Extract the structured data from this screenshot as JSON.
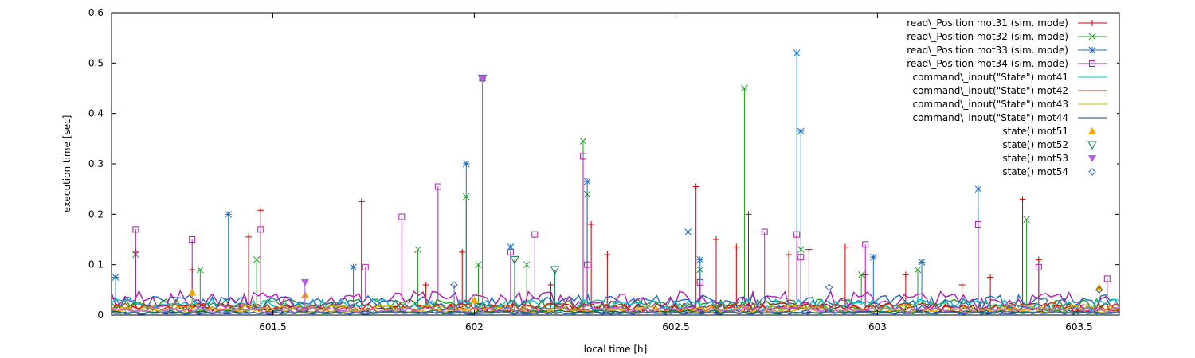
{
  "chart_data": {
    "type": "line",
    "title": "",
    "xlabel": "local time [h]",
    "ylabel": "execution time [sec]",
    "xlim": [
      601.1,
      603.6
    ],
    "ylim": [
      0,
      0.6
    ],
    "x_ticks": [
      601.5,
      602,
      602.5,
      603,
      603.5
    ],
    "x_tick_labels": [
      "601.5",
      "602",
      "602.5",
      "603",
      "603.5"
    ],
    "y_ticks": [
      0,
      0.1,
      0.2,
      0.3,
      0.4,
      0.5,
      0.6
    ],
    "y_tick_labels": [
      "0",
      "0.1",
      "0.2",
      "0.3",
      "0.4",
      "0.5",
      "0.6"
    ],
    "grid": false,
    "legend_position": "top-right",
    "series": [
      {
        "name": "read\\_Position mot31 (sim. mode)",
        "color": "#cc0000",
        "marker": "plus",
        "baseline": 0.015,
        "x": [
          601.16,
          601.3,
          601.44,
          601.47,
          601.72,
          601.88,
          601.97,
          602.19,
          602.29,
          602.33,
          602.55,
          602.6,
          602.65,
          602.68,
          602.78,
          602.83,
          602.92,
          602.97,
          603.07,
          603.21,
          603.28,
          603.36,
          603.4
        ],
        "y": [
          0.125,
          0.09,
          0.155,
          0.208,
          0.225,
          0.06,
          0.125,
          0.06,
          0.18,
          0.12,
          0.255,
          0.15,
          0.135,
          0.2,
          0.12,
          0.13,
          0.135,
          0.08,
          0.08,
          0.06,
          0.075,
          0.23,
          0.11
        ]
      },
      {
        "name": "read\\_Position mot32 (sim. mode)",
        "color": "#1e9e1e",
        "marker": "x",
        "baseline": 0.02,
        "x": [
          601.16,
          601.32,
          601.46,
          601.86,
          601.98,
          602.01,
          602.13,
          602.27,
          602.28,
          602.56,
          602.67,
          602.81,
          602.96,
          603.1,
          603.37
        ],
        "y": [
          0.12,
          0.09,
          0.11,
          0.13,
          0.235,
          0.1,
          0.1,
          0.345,
          0.24,
          0.09,
          0.45,
          0.13,
          0.08,
          0.09,
          0.19
        ]
      },
      {
        "name": "read\\_Position mot33 (sim. mode)",
        "color": "#1f6fbf",
        "marker": "star",
        "baseline": 0.025,
        "x": [
          601.11,
          601.39,
          601.7,
          601.98,
          602.02,
          602.09,
          602.28,
          602.53,
          602.56,
          602.8,
          602.81,
          602.99,
          603.11,
          603.25
        ],
        "y": [
          0.075,
          0.2,
          0.095,
          0.3,
          0.47,
          0.135,
          0.265,
          0.165,
          0.11,
          0.52,
          0.365,
          0.115,
          0.105,
          0.25
        ]
      },
      {
        "name": "read\\_Position mot34 (sim. mode)",
        "color": "#b01eb0",
        "marker": "square",
        "baseline": 0.03,
        "x": [
          601.16,
          601.3,
          601.47,
          601.73,
          601.82,
          601.91,
          602.02,
          602.09,
          602.15,
          602.27,
          602.28,
          602.56,
          602.72,
          602.8,
          602.81,
          602.97,
          603.25,
          603.4,
          603.57
        ],
        "y": [
          0.17,
          0.15,
          0.17,
          0.095,
          0.195,
          0.255,
          0.47,
          0.125,
          0.16,
          0.315,
          0.1,
          0.065,
          0.165,
          0.16,
          0.115,
          0.14,
          0.18,
          0.095,
          0.072
        ]
      },
      {
        "name": "command\\_inout(\"State\") mot41",
        "color": "#00c8c8",
        "marker": "none",
        "baseline": 0.02,
        "x": [],
        "y": []
      },
      {
        "name": "command\\_inout(\"State\") mot42",
        "color": "#cc3300",
        "marker": "none",
        "baseline": 0.015,
        "x": [],
        "y": []
      },
      {
        "name": "command\\_inout(\"State\") mot43",
        "color": "#c8b400",
        "marker": "none",
        "baseline": 0.012,
        "x": [],
        "y": []
      },
      {
        "name": "command\\_inout(\"State\") mot44",
        "color": "#1f3c8c",
        "marker": "none",
        "baseline": 0.005,
        "x": [],
        "y": []
      },
      {
        "name": "state() mot51",
        "color": "#f0a800",
        "marker": "triangle-up",
        "baseline": 0.008,
        "x": [
          601.3,
          601.58,
          602.0,
          603.55
        ],
        "y": [
          0.045,
          0.04,
          0.03,
          0.055
        ]
      },
      {
        "name": "state() mot52",
        "color": "#0a7a4a",
        "marker": "triangle-down",
        "baseline": 0.006,
        "x": [
          602.02,
          602.1,
          602.2
        ],
        "y": [
          0.47,
          0.11,
          0.09
        ]
      },
      {
        "name": "state() mot53",
        "color": "#b060e0",
        "marker": "triangle-down-filled",
        "baseline": 0.01,
        "x": [
          601.58,
          602.02
        ],
        "y": [
          0.065,
          0.47
        ]
      },
      {
        "name": "state() mot54",
        "color": "#3a6ab0",
        "marker": "diamond",
        "baseline": 0.004,
        "x": [
          601.95,
          602.88,
          603.55
        ],
        "y": [
          0.06,
          0.055,
          0.05
        ]
      }
    ]
  }
}
